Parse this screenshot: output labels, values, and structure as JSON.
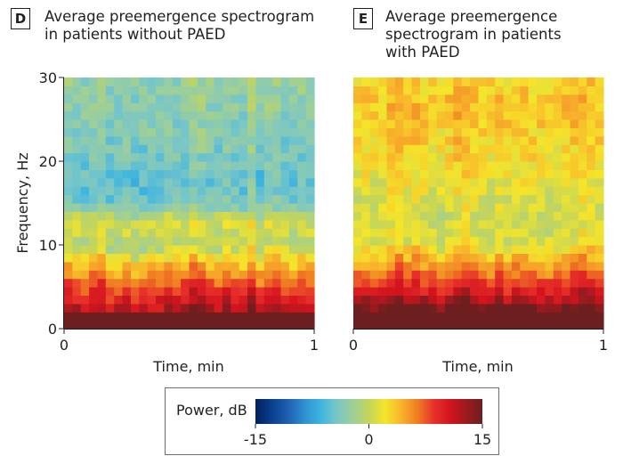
{
  "chart_data": [
    {
      "type": "heatmap",
      "panel_label": "D",
      "title": "Average preemergence spectrogram\nin patients without PAED",
      "xlabel": "Time, min",
      "ylabel": "Frequency, Hz",
      "xlim": [
        0,
        1
      ],
      "ylim": [
        0,
        30
      ],
      "xticks": [
        "0",
        "1"
      ],
      "yticks": [
        "0",
        "10",
        "20",
        "30"
      ],
      "n_time_bins": 30,
      "n_freq_bins": 30,
      "freq_profile_db": [
        15,
        15,
        11,
        9.5,
        8,
        6.5,
        5,
        3.5,
        1.5,
        0,
        -1,
        0,
        0.5,
        -1,
        -3.5,
        -4.5,
        -5,
        -5,
        -5,
        -4.5,
        -4.5,
        -4,
        -4,
        -3.5,
        -3.5,
        -3.5,
        -3,
        -3,
        -3,
        -3
      ],
      "time_modulation_db": [
        1.5,
        0.5,
        0.2,
        1,
        2,
        -0.5,
        0,
        0.5,
        -1,
        -0.5,
        0.3,
        0,
        1,
        0.5,
        1,
        2.5,
        2,
        0.5,
        0,
        1.5,
        0.5,
        0,
        3,
        -0.5,
        1.5,
        2,
        0.5,
        -0.5,
        1,
        0.5
      ],
      "colormap": [
        "#00205b",
        "#0b3f8f",
        "#1d5fb0",
        "#2f8fd0",
        "#3cb4e0",
        "#78c6c8",
        "#9dcf9a",
        "#c4d55a",
        "#f5e52a",
        "#f8b32b",
        "#f07d22",
        "#e8312a",
        "#d4141e",
        "#9c1a1f",
        "#6d1e1f"
      ],
      "clim": [
        -15,
        15
      ]
    },
    {
      "type": "heatmap",
      "panel_label": "E",
      "title": "Average preemergence\nspectrogram in patients\nwith PAED",
      "xlabel": "Time, min",
      "ylabel": "",
      "xlim": [
        0,
        1
      ],
      "ylim": [
        0,
        30
      ],
      "xticks": [
        "0",
        "1"
      ],
      "yticks": [],
      "n_time_bins": 30,
      "n_freq_bins": 30,
      "freq_profile_db": [
        15,
        15,
        14,
        11,
        9,
        7.5,
        6,
        4.5,
        3,
        1.5,
        0.5,
        0.5,
        0,
        0,
        0.5,
        0.5,
        1,
        1,
        1.5,
        1.5,
        2,
        2,
        2.5,
        2.5,
        3,
        3,
        3,
        3,
        2.5,
        2.5
      ],
      "time_modulation_db": [
        0.5,
        1,
        0,
        0.5,
        2,
        3,
        1.5,
        2,
        1,
        0.5,
        0,
        1,
        2.5,
        3,
        1.5,
        0.5,
        0,
        1.5,
        0.5,
        1,
        1.5,
        1,
        0.5,
        0,
        0.5,
        1,
        1.5,
        2.5,
        2,
        1
      ],
      "colormap": [
        "#00205b",
        "#0b3f8f",
        "#1d5fb0",
        "#2f8fd0",
        "#3cb4e0",
        "#78c6c8",
        "#9dcf9a",
        "#c4d55a",
        "#f5e52a",
        "#f8b32b",
        "#f07d22",
        "#e8312a",
        "#d4141e",
        "#9c1a1f",
        "#6d1e1f"
      ],
      "clim": [
        -15,
        15
      ]
    }
  ],
  "colorbar": {
    "label": "Power, dB",
    "ticks": [
      "-15",
      "0",
      "15"
    ],
    "range": [
      -15,
      15
    ]
  }
}
